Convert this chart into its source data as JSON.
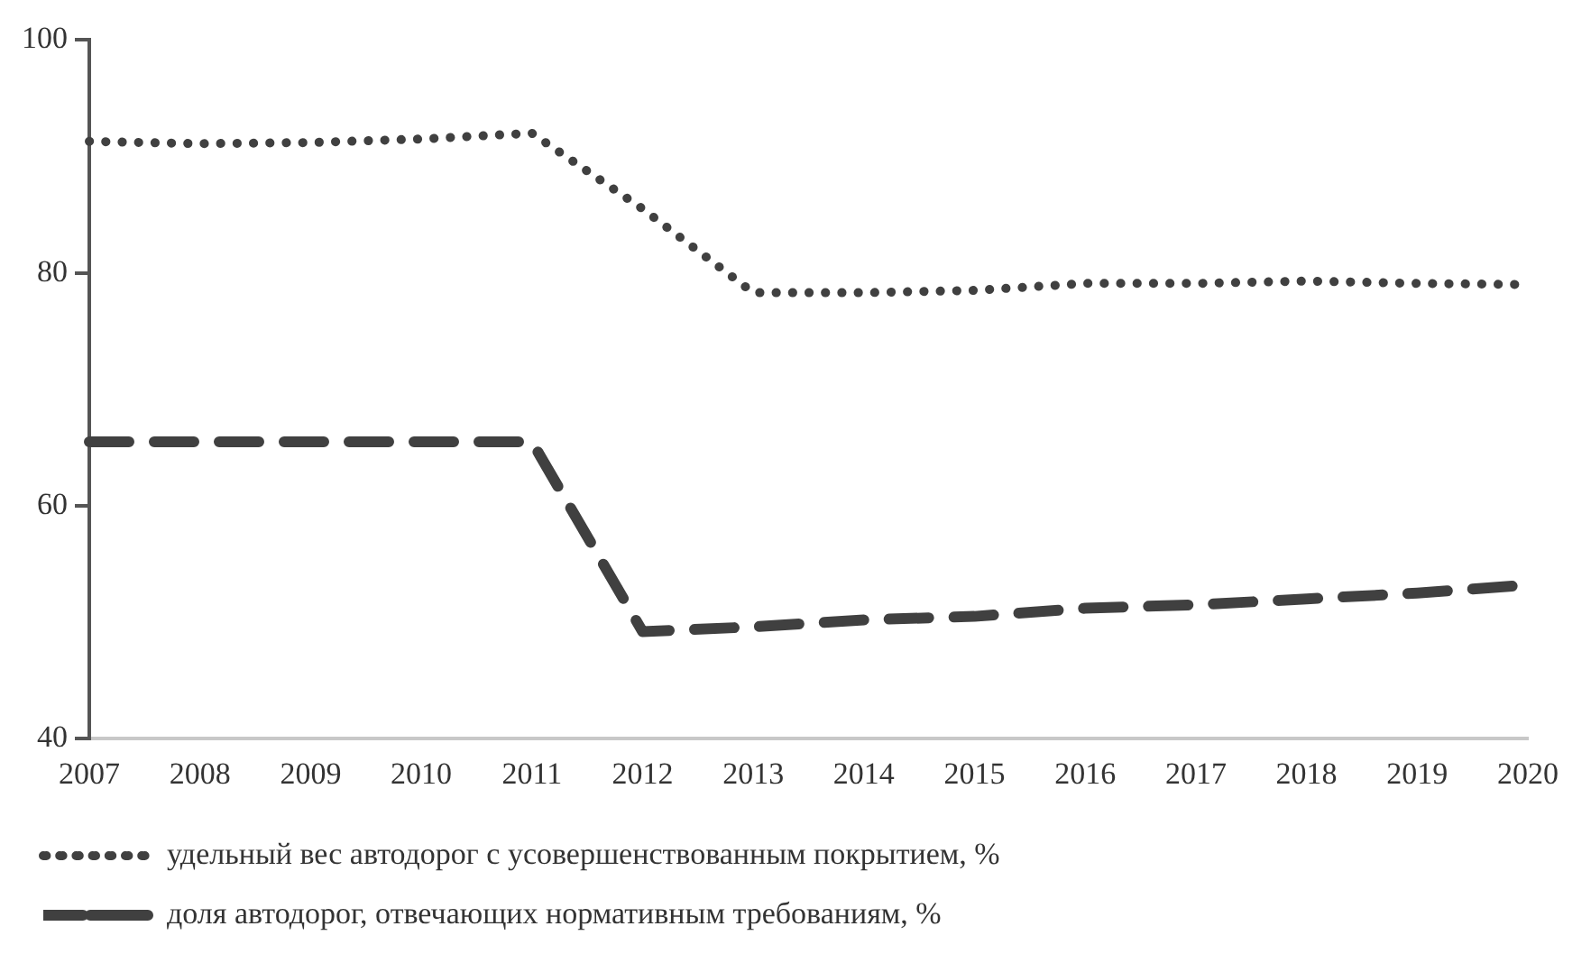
{
  "chart_data": {
    "type": "line",
    "categories": [
      "2007",
      "2008",
      "2009",
      "2010",
      "2011",
      "2012",
      "2013",
      "2014",
      "2015",
      "2016",
      "2017",
      "2018",
      "2019",
      "2020"
    ],
    "series": [
      {
        "name": "удельный вес автодорог с усовершенствованным покрытием, %",
        "color": "#404040",
        "line_style": "dotted",
        "values": [
          91.3,
          91.1,
          91.2,
          91.5,
          92.0,
          85.5,
          78.3,
          78.3,
          78.5,
          79.1,
          79.1,
          79.3,
          79.1,
          79.0
        ]
      },
      {
        "name": "доля автодорог, отвечающих нормативным требованиям, %",
        "color": "#404040",
        "line_style": "dashed",
        "values": [
          65.5,
          65.5,
          65.5,
          65.5,
          65.5,
          49.2,
          49.6,
          50.2,
          50.5,
          51.2,
          51.5,
          52.0,
          52.5,
          53.2
        ]
      }
    ],
    "ylim": [
      40,
      100
    ],
    "yticks": [
      40,
      60,
      80,
      100
    ],
    "grid": false,
    "legend": "bottom",
    "marker": "none"
  }
}
